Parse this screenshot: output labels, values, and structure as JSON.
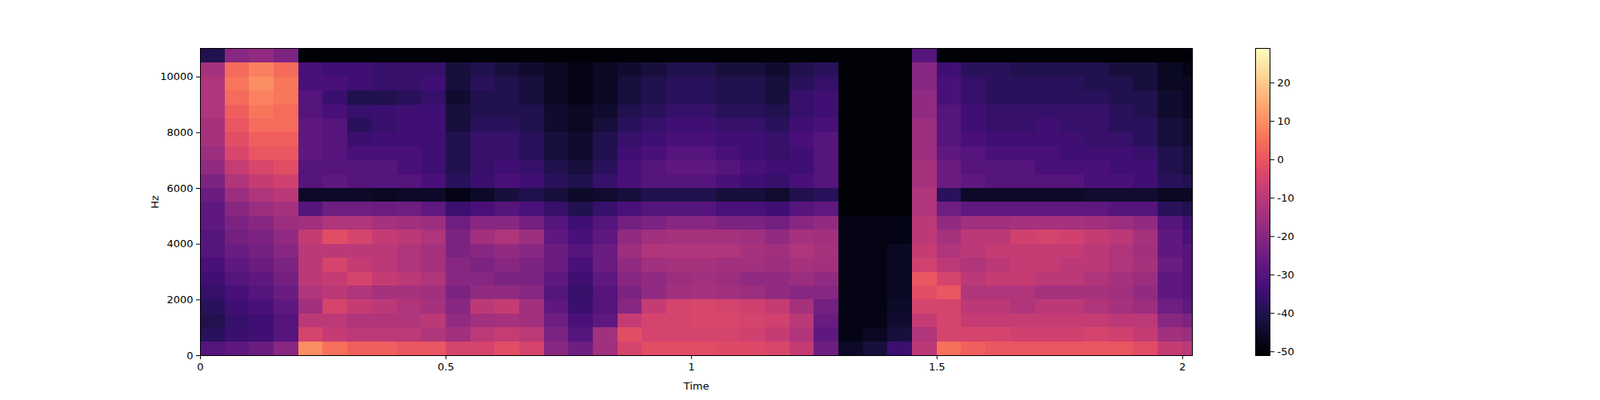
{
  "chart_data": {
    "type": "heatmap",
    "xlabel": "Time",
    "ylabel": "Hz",
    "xlim": [
      0,
      2.02
    ],
    "ylim": [
      0,
      11025
    ],
    "xticks": [
      0,
      0.5,
      1,
      1.5,
      2
    ],
    "yticks": [
      0,
      2000,
      4000,
      6000,
      8000,
      10000
    ],
    "color": "magma",
    "times": [
      0,
      0.05,
      0.1,
      0.15,
      0.2,
      0.25,
      0.3,
      0.35,
      0.4,
      0.45,
      0.5,
      0.55,
      0.6,
      0.65,
      0.7,
      0.75,
      0.8,
      0.85,
      0.9,
      0.95,
      1,
      1.05,
      1.1,
      1.15,
      1.2,
      1.25,
      1.3,
      1.35,
      1.4,
      1.45,
      1.5,
      1.55,
      1.6,
      1.65,
      1.7,
      1.75,
      1.8,
      1.85,
      1.9,
      1.95,
      2
    ],
    "frequencies": [
      0,
      500,
      1000,
      1500,
      2000,
      2500,
      3000,
      3500,
      4000,
      4500,
      5000,
      5500,
      6000,
      6500,
      7000,
      7500,
      8000,
      8500,
      9000,
      9500,
      10000,
      10500
    ],
    "cells": [
      [
        -30,
        -38,
        -40,
        -38,
        -36,
        -34,
        -32,
        -30,
        -30,
        -28,
        -28,
        -26,
        -22,
        -18,
        -16,
        -14,
        -14,
        -12,
        -12,
        -12,
        -14,
        -40
      ],
      [
        -28,
        -35,
        -36,
        -34,
        -32,
        -30,
        -28,
        -26,
        -24,
        -22,
        -20,
        -16,
        -12,
        -8,
        -4,
        -2,
        0,
        2,
        4,
        6,
        4,
        -20
      ],
      [
        -26,
        -34,
        -34,
        -32,
        -30,
        -28,
        -26,
        -24,
        -22,
        -20,
        -16,
        -12,
        -8,
        -4,
        0,
        2,
        4,
        6,
        8,
        10,
        8,
        -18
      ],
      [
        -20,
        -30,
        -30,
        -28,
        -26,
        -24,
        -22,
        -20,
        -18,
        -16,
        -14,
        -10,
        -6,
        -2,
        0,
        2,
        4,
        4,
        6,
        6,
        4,
        -22
      ],
      [
        10,
        -5,
        -10,
        -15,
        -12,
        -10,
        -10,
        -10,
        -8,
        -15,
        -30,
        -45,
        -30,
        -30,
        -28,
        -28,
        -28,
        -30,
        -30,
        -32,
        -32,
        -50
      ],
      [
        5,
        -8,
        -10,
        -5,
        -10,
        -8,
        -5,
        -10,
        -2,
        -12,
        -25,
        -45,
        -28,
        -30,
        -30,
        -30,
        -30,
        -32,
        -35,
        -32,
        -34,
        -50
      ],
      [
        2,
        -10,
        -12,
        -8,
        -12,
        -5,
        -8,
        -10,
        -5,
        -12,
        -25,
        -45,
        -30,
        -30,
        -32,
        -35,
        -38,
        -36,
        -40,
        -34,
        -34,
        -50
      ],
      [
        2,
        -10,
        -12,
        -10,
        -14,
        -8,
        -10,
        -10,
        -8,
        -14,
        -26,
        -46,
        -30,
        -30,
        -32,
        -34,
        -36,
        -35,
        -40,
        -36,
        -36,
        -50
      ],
      [
        0,
        -10,
        -12,
        -12,
        -14,
        -10,
        -12,
        -12,
        -10,
        -15,
        -25,
        -45,
        -30,
        -32,
        -32,
        -34,
        -34,
        -34,
        -38,
        -36,
        -36,
        -50
      ],
      [
        0,
        -12,
        -10,
        -14,
        -15,
        -12,
        -14,
        -14,
        -12,
        -16,
        -28,
        -45,
        -32,
        -34,
        -34,
        -34,
        -34,
        -34,
        -36,
        -34,
        -36,
        -50
      ],
      [
        -5,
        -15,
        -18,
        -20,
        -22,
        -20,
        -20,
        -22,
        -22,
        -25,
        -35,
        -48,
        -38,
        -40,
        -40,
        -40,
        -42,
        -42,
        -44,
        -42,
        -42,
        -50
      ],
      [
        -5,
        -10,
        -15,
        -10,
        -18,
        -20,
        -22,
        -20,
        -15,
        -20,
        -32,
        -45,
        -35,
        -36,
        -36,
        -36,
        -38,
        -40,
        -40,
        -38,
        -40,
        -50
      ],
      [
        -2,
        -8,
        -14,
        -8,
        -18,
        -22,
        -20,
        -18,
        -12,
        -20,
        -30,
        -42,
        -32,
        -34,
        -36,
        -36,
        -38,
        -40,
        -40,
        -40,
        -42,
        -50
      ],
      [
        -5,
        -10,
        -15,
        -15,
        -20,
        -22,
        -22,
        -20,
        -16,
        -24,
        -32,
        -40,
        -34,
        -36,
        -38,
        -38,
        -40,
        -40,
        -42,
        -42,
        -44,
        -50
      ],
      [
        -20,
        -22,
        -25,
        -28,
        -30,
        -28,
        -26,
        -26,
        -28,
        -30,
        -36,
        -42,
        -38,
        -40,
        -42,
        -42,
        -44,
        -44,
        -46,
        -46,
        -46,
        -50
      ],
      [
        -25,
        -30,
        -32,
        -35,
        -36,
        -34,
        -32,
        -30,
        -32,
        -34,
        -40,
        -45,
        -40,
        -42,
        -44,
        -44,
        -46,
        -46,
        -48,
        -48,
        -48,
        -50
      ],
      [
        -15,
        -15,
        -28,
        -30,
        -30,
        -28,
        -26,
        -26,
        -28,
        -30,
        -36,
        -44,
        -36,
        -38,
        -40,
        -40,
        -42,
        -44,
        -46,
        -46,
        -46,
        -50
      ],
      [
        -5,
        -2,
        -8,
        -20,
        -22,
        -20,
        -18,
        -16,
        -18,
        -24,
        -32,
        -42,
        -32,
        -32,
        -34,
        -36,
        -38,
        -40,
        -42,
        -42,
        -44,
        -50
      ],
      [
        -2,
        -5,
        -5,
        -8,
        -18,
        -18,
        -15,
        -12,
        -15,
        -22,
        -30,
        -40,
        -30,
        -30,
        -32,
        -34,
        -36,
        -38,
        -40,
        -40,
        -42,
        -50
      ],
      [
        -2,
        -5,
        -5,
        -5,
        -15,
        -16,
        -14,
        -12,
        -14,
        -20,
        -30,
        -40,
        -30,
        -28,
        -30,
        -32,
        -34,
        -36,
        -38,
        -38,
        -40,
        -50
      ],
      [
        -2,
        -5,
        -4,
        -4,
        -14,
        -15,
        -14,
        -12,
        -14,
        -20,
        -30,
        -40,
        -30,
        -28,
        -30,
        -32,
        -34,
        -36,
        -38,
        -38,
        -40,
        -50
      ],
      [
        -3,
        -5,
        -4,
        -5,
        -15,
        -16,
        -15,
        -12,
        -14,
        -22,
        -32,
        -42,
        -32,
        -30,
        -32,
        -34,
        -36,
        -38,
        -40,
        -40,
        -42,
        -50
      ],
      [
        -3,
        -6,
        -5,
        -6,
        -16,
        -18,
        -15,
        -14,
        -15,
        -22,
        -32,
        -42,
        -34,
        -32,
        -34,
        -34,
        -36,
        -38,
        -40,
        -40,
        -42,
        -50
      ],
      [
        -4,
        -8,
        -6,
        -8,
        -18,
        -18,
        -16,
        -15,
        -18,
        -24,
        -34,
        -44,
        -36,
        -34,
        -36,
        -36,
        -38,
        -40,
        -42,
        -42,
        -44,
        -50
      ],
      [
        -8,
        -12,
        -10,
        -14,
        -20,
        -16,
        -14,
        -12,
        -14,
        -20,
        -30,
        -40,
        -32,
        -34,
        -34,
        -32,
        -34,
        -36,
        -36,
        -38,
        -40,
        -50
      ],
      [
        -25,
        -28,
        -26,
        -24,
        -20,
        -18,
        -15,
        -14,
        -15,
        -18,
        -28,
        -38,
        -30,
        -30,
        -30,
        -30,
        -32,
        -34,
        -34,
        -36,
        -38,
        -50
      ],
      [
        -45,
        -48,
        -48,
        -48,
        -48,
        -48,
        -48,
        -48,
        -48,
        -48,
        -50,
        -50,
        -50,
        -50,
        -50,
        -50,
        -50,
        -50,
        -50,
        -50,
        -50,
        -50
      ],
      [
        -42,
        -46,
        -48,
        -48,
        -48,
        -48,
        -48,
        -48,
        -48,
        -48,
        -50,
        -50,
        -50,
        -50,
        -50,
        -50,
        -50,
        -50,
        -50,
        -50,
        -50,
        -50
      ],
      [
        -35,
        -42,
        -44,
        -45,
        -46,
        -46,
        -46,
        -46,
        -48,
        -48,
        -50,
        -50,
        -50,
        -50,
        -50,
        -50,
        -50,
        -50,
        -50,
        -50,
        -50,
        -50
      ],
      [
        -10,
        -12,
        -8,
        -5,
        -2,
        0,
        -6,
        -8,
        -10,
        -10,
        -12,
        -12,
        -14,
        -14,
        -16,
        -16,
        -16,
        -18,
        -18,
        -20,
        -20,
        -30
      ],
      [
        5,
        -5,
        -5,
        -5,
        0,
        -5,
        -10,
        -12,
        -14,
        -18,
        -25,
        -38,
        -26,
        -26,
        -28,
        -30,
        -30,
        -30,
        -32,
        -32,
        -34,
        -50
      ],
      [
        2,
        -5,
        -8,
        -10,
        -12,
        -10,
        -12,
        -10,
        -10,
        -15,
        -28,
        -45,
        -28,
        -30,
        -30,
        -32,
        -34,
        -34,
        -36,
        -36,
        -38,
        -50
      ],
      [
        0,
        -5,
        -8,
        -10,
        -12,
        -8,
        -10,
        -8,
        -10,
        -15,
        -28,
        -45,
        -30,
        -30,
        -32,
        -34,
        -36,
        -36,
        -38,
        -38,
        -38,
        -50
      ],
      [
        0,
        -6,
        -8,
        -12,
        -12,
        -8,
        -8,
        -8,
        -6,
        -14,
        -28,
        -45,
        -30,
        -30,
        -32,
        -34,
        -36,
        -36,
        -38,
        -38,
        -40,
        -50
      ],
      [
        0,
        -6,
        -8,
        -10,
        -14,
        -10,
        -8,
        -8,
        -5,
        -14,
        -28,
        -45,
        -30,
        -32,
        -32,
        -34,
        -34,
        -36,
        -38,
        -38,
        -40,
        -50
      ],
      [
        0,
        -6,
        -8,
        -10,
        -14,
        -10,
        -10,
        -8,
        -6,
        -14,
        -28,
        -45,
        -30,
        -32,
        -34,
        -34,
        -36,
        -36,
        -38,
        -38,
        -40,
        -50
      ],
      [
        0,
        -5,
        -8,
        -12,
        -14,
        -12,
        -10,
        -10,
        -8,
        -15,
        -28,
        -44,
        -32,
        -32,
        -34,
        -36,
        -36,
        -36,
        -38,
        -40,
        -40,
        -50
      ],
      [
        0,
        -6,
        -10,
        -14,
        -15,
        -14,
        -12,
        -12,
        -10,
        -16,
        -30,
        -44,
        -32,
        -34,
        -34,
        -36,
        -38,
        -38,
        -40,
        -40,
        -42,
        -50
      ],
      [
        -2,
        -8,
        -10,
        -16,
        -18,
        -16,
        -14,
        -15,
        -14,
        -18,
        -30,
        -44,
        -34,
        -34,
        -36,
        -38,
        -38,
        -40,
        -40,
        -42,
        -42,
        -50
      ],
      [
        -8,
        -15,
        -20,
        -25,
        -28,
        -28,
        -26,
        -28,
        -28,
        -30,
        -38,
        -46,
        -38,
        -40,
        -40,
        -42,
        -42,
        -44,
        -44,
        -46,
        -46,
        -50
      ],
      [
        -10,
        -16,
        -22,
        -28,
        -30,
        -30,
        -30,
        -30,
        -32,
        -34,
        -40,
        -46,
        -40,
        -42,
        -42,
        -44,
        -44,
        -46,
        -46,
        -46,
        -48,
        -50
      ]
    ],
    "colorbar": {
      "range": [
        -51,
        29
      ],
      "ticks": [
        -50,
        -40,
        -30,
        -20,
        -10,
        0,
        10,
        20
      ]
    }
  }
}
